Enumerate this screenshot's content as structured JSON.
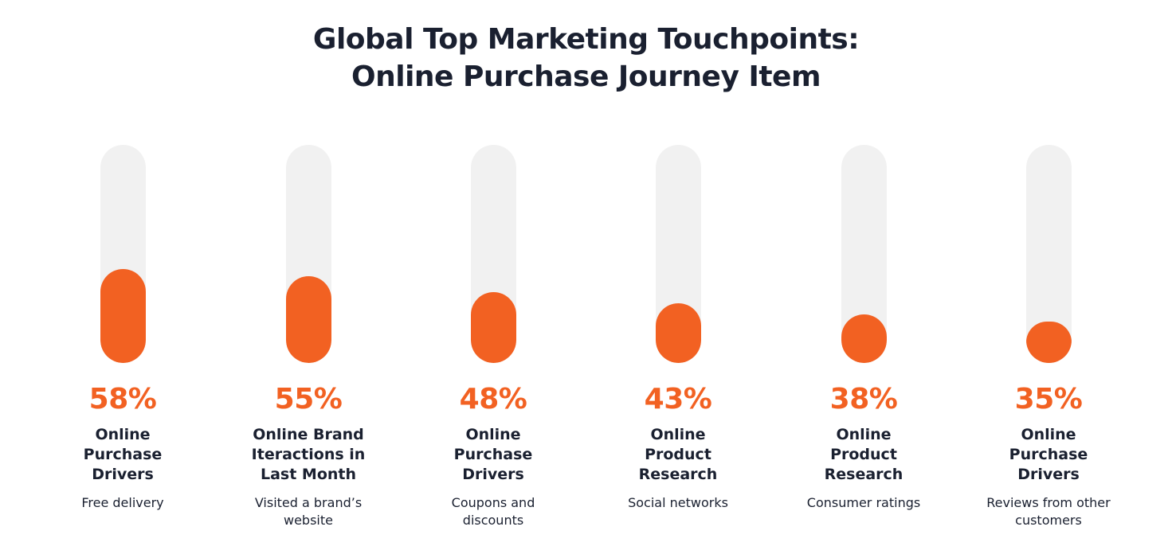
{
  "title_line1": "Global Top Marketing Touchpoints:",
  "title_line2": "Online Purchase Journey Item",
  "colors": {
    "fill": "#f26122",
    "track": "#f1f1f1",
    "text": "#1a2030"
  },
  "chart_data": {
    "type": "bar",
    "title": "Global Top Marketing Touchpoints: Online Purchase Journey Item",
    "ylim": [
      0,
      100
    ],
    "categories": [
      "Online Purchase Drivers",
      "Online Brand Iteractions in Last Month",
      "Online Purchase Drivers",
      "Online Product Research",
      "Online Product Research",
      "Online Purchase Drivers"
    ],
    "subcategories": [
      "Free delivery",
      "Visited a brand’s website",
      "Coupons and discounts",
      "Social networks",
      "Consumer ratings",
      "Reviews from other customers"
    ],
    "values": [
      58,
      55,
      48,
      43,
      38,
      35
    ],
    "labels": [
      "58%",
      "55%",
      "48%",
      "43%",
      "38%",
      "35%"
    ]
  }
}
